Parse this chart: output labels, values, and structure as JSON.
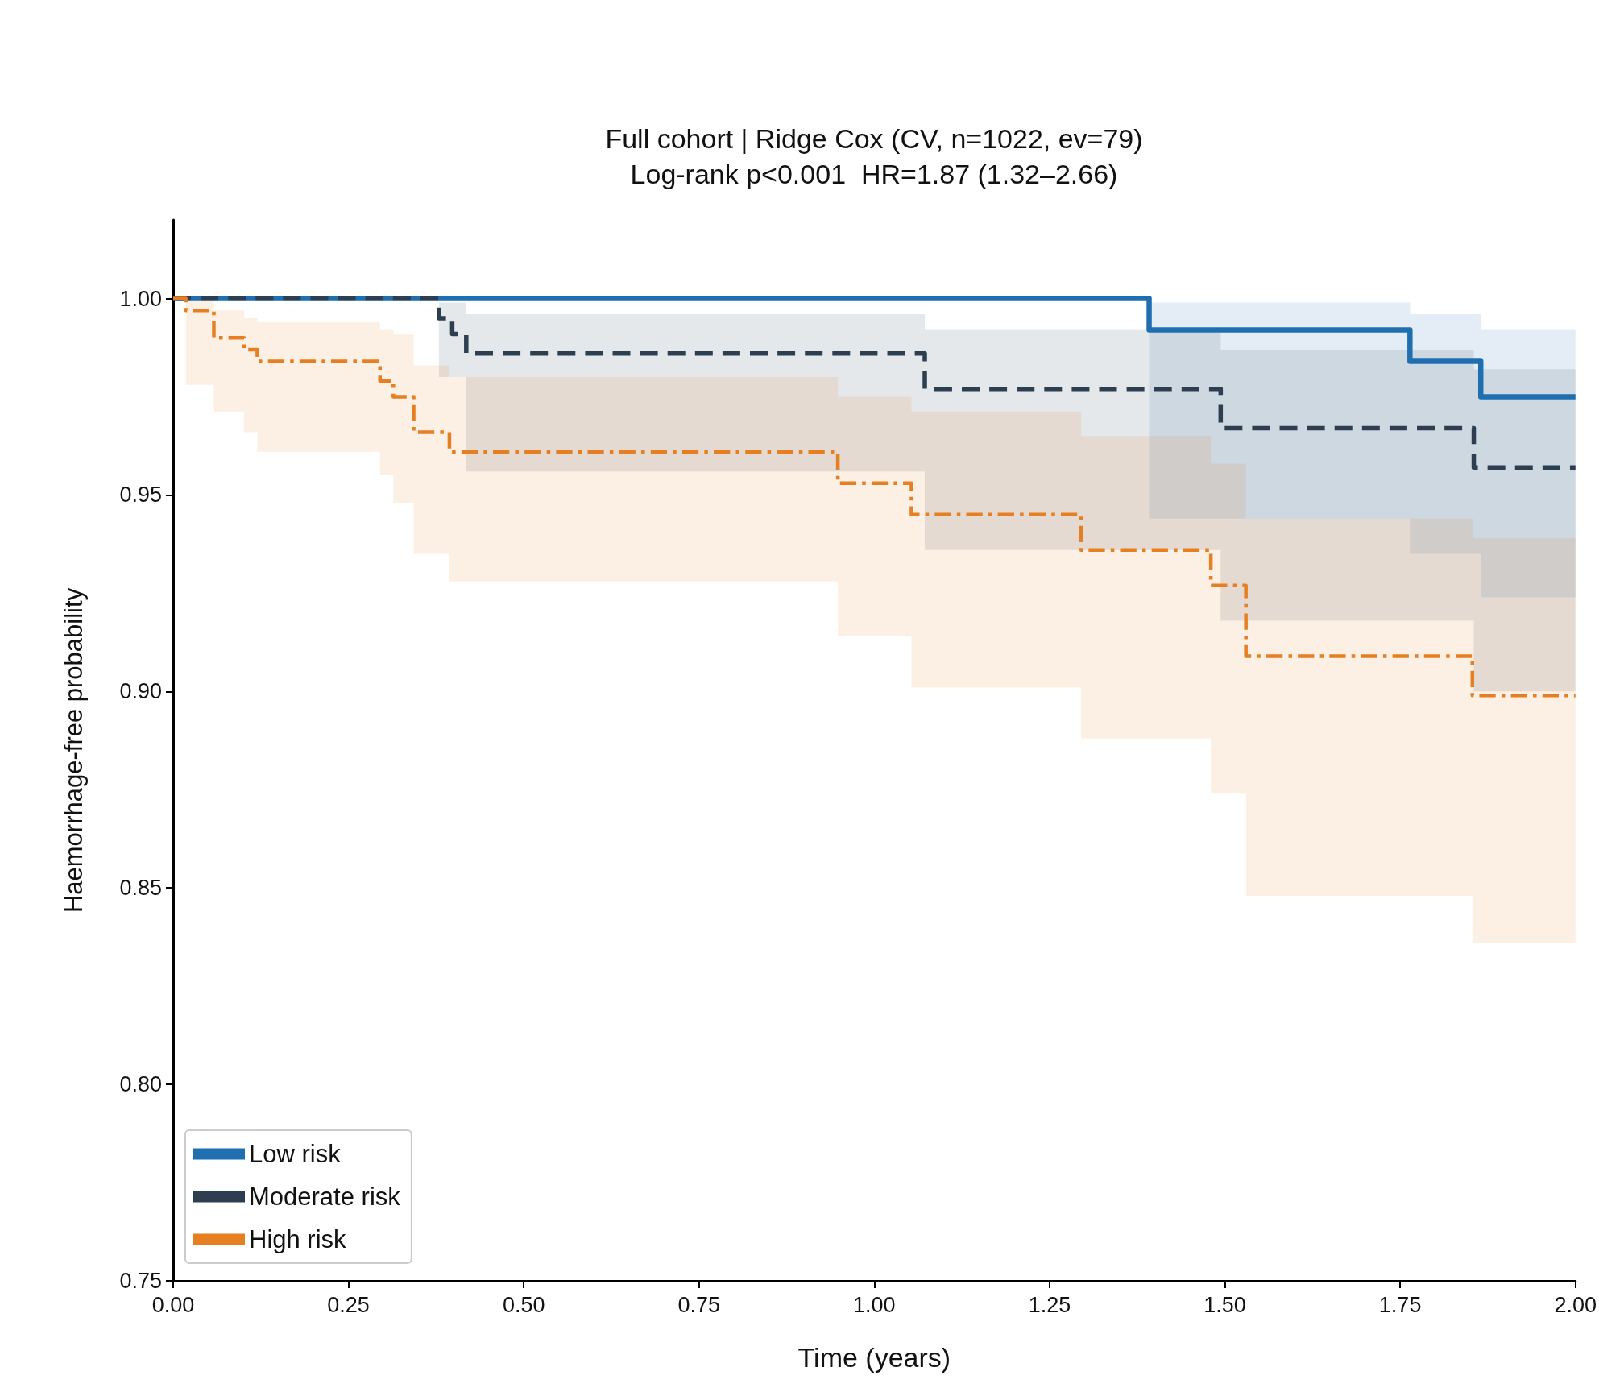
{
  "chart_data": {
    "type": "step",
    "title": "Full cohort | Ridge Cox (CV, n=1022, ev=79)",
    "subtitle": "Log-rank p<0.001  HR=1.87 (1.32–2.66)",
    "xlabel": "Time (years)",
    "ylabel": "Haemorrhage-free probability",
    "xlim": [
      0,
      2
    ],
    "ylim": [
      0.75,
      1.02
    ],
    "xticks": [
      {
        "value": 0,
        "label": "0.00"
      },
      {
        "value": 0.25,
        "label": "0.25"
      },
      {
        "value": 0.5,
        "label": "0.50"
      },
      {
        "value": 0.75,
        "label": "0.75"
      },
      {
        "value": 1,
        "label": "1.00"
      },
      {
        "value": 1.25,
        "label": "1.25"
      },
      {
        "value": 1.5,
        "label": "1.50"
      },
      {
        "value": 1.75,
        "label": "1.75"
      },
      {
        "value": 2,
        "label": "2.00"
      }
    ],
    "yticks": [
      {
        "value": 0.75,
        "label": "0.75"
      },
      {
        "value": 0.8,
        "label": "0.80"
      },
      {
        "value": 0.85,
        "label": "0.85"
      },
      {
        "value": 0.9,
        "label": "0.90"
      },
      {
        "value": 0.95,
        "label": "0.95"
      },
      {
        "value": 1,
        "label": "1.00"
      }
    ],
    "grid": false,
    "legend": "bottom left",
    "marker": "none",
    "series": [
      {
        "name": "Low risk",
        "color": "#1f6fb0",
        "line_style": "solid",
        "x": [
          0,
          1.392,
          1.764,
          1.865,
          2.0
        ],
        "values": [
          1.0,
          0.992,
          0.984,
          0.975,
          0.975
        ],
        "lower": [
          1.0,
          0.944,
          0.935,
          0.924,
          0.924
        ],
        "upper": [
          1.0,
          0.999,
          0.996,
          0.992,
          0.992
        ]
      },
      {
        "name": "Moderate risk",
        "color": "#2c3e50",
        "line_style": "dashed",
        "x": [
          0,
          0.379,
          0.398,
          0.418,
          1.072,
          1.494,
          1.855,
          2.0
        ],
        "values": [
          1.0,
          0.995,
          0.991,
          0.986,
          0.977,
          0.967,
          0.957,
          0.957
        ],
        "lower": [
          1.0,
          0.98,
          0.98,
          0.956,
          0.936,
          0.918,
          0.9,
          0.9
        ],
        "upper": [
          1.0,
          0.999,
          0.999,
          0.996,
          0.992,
          0.987,
          0.982,
          0.982
        ]
      },
      {
        "name": "High risk",
        "color": "#e67e22",
        "line_style": "dashdot",
        "x": [
          0,
          0.018,
          0.058,
          0.101,
          0.12,
          0.295,
          0.314,
          0.343,
          0.394,
          0.948,
          1.053,
          1.295,
          1.48,
          1.53,
          1.853,
          2.0
        ],
        "values": [
          1.0,
          0.997,
          0.99,
          0.987,
          0.984,
          0.979,
          0.975,
          0.966,
          0.961,
          0.953,
          0.945,
          0.936,
          0.927,
          0.909,
          0.899,
          0.899
        ],
        "lower": [
          1.0,
          0.978,
          0.971,
          0.966,
          0.961,
          0.955,
          0.948,
          0.935,
          0.928,
          0.914,
          0.901,
          0.888,
          0.874,
          0.848,
          0.836,
          0.836
        ],
        "upper": [
          1.0,
          1.0,
          0.997,
          0.995,
          0.994,
          0.992,
          0.991,
          0.983,
          0.98,
          0.975,
          0.971,
          0.965,
          0.958,
          0.944,
          0.939,
          0.939
        ]
      }
    ]
  }
}
